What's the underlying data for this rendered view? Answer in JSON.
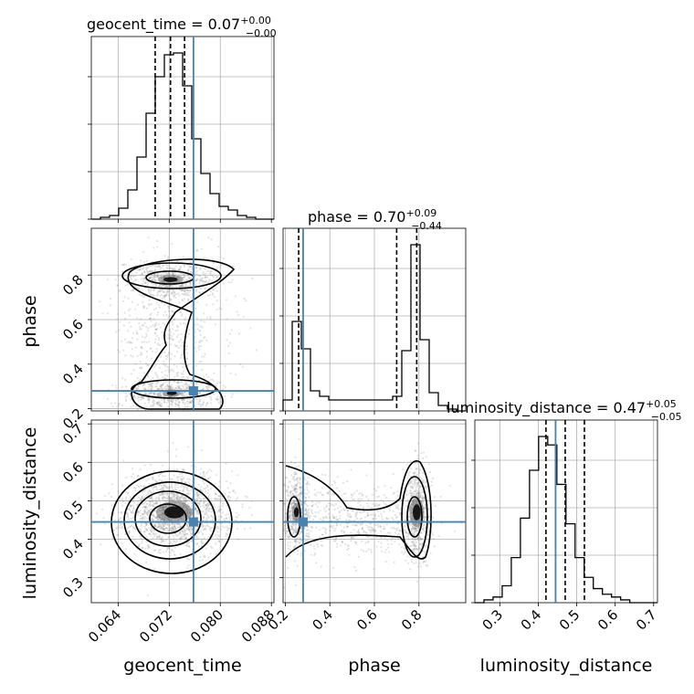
{
  "colors": {
    "truth": "#4682b4",
    "line": "#000000",
    "grid": "#b0b0b0",
    "scatter": "#808080"
  },
  "chart_data": {
    "type": "corner",
    "parameters": [
      "geocent_time",
      "phase",
      "luminosity_distance"
    ],
    "truth": {
      "geocent_time": 0.0758,
      "phase": 0.28,
      "luminosity_distance": 0.445
    },
    "ranges": {
      "geocent_time": [
        0.0598,
        0.0884
      ],
      "phase": [
        0.19,
        1.01
      ],
      "luminosity_distance": [
        0.235,
        0.71
      ]
    },
    "ticks": {
      "geocent_time": [
        "0.064",
        "0.072",
        "0.080",
        "0.088"
      ],
      "phase_x": [
        "0.2",
        "0.4",
        "0.6",
        "0.8"
      ],
      "phase_y": [
        "0.2",
        "0.4",
        "0.6",
        "0.8"
      ],
      "luminosity_distance_x": [
        "0.3",
        "0.4",
        "0.5",
        "0.6",
        "0.7"
      ],
      "luminosity_distance_y": [
        "0.3",
        "0.4",
        "0.5",
        "0.6",
        "0.7"
      ]
    },
    "titles": {
      "geocent_time": {
        "main": "geocent_time = 0.07",
        "sup": "+0.00",
        "sub": "−0.00"
      },
      "phase": {
        "main": "phase = 0.70",
        "sup": "+0.09",
        "sub": "−0.44"
      },
      "luminosity_distance": {
        "main": "luminosity_distance = 0.47",
        "sup": "+0.05",
        "sub": "−0.05"
      }
    },
    "quantiles": {
      "geocent_time": [
        0.0698,
        0.0722,
        0.0744
      ],
      "phase": [
        0.26,
        0.7,
        0.79
      ],
      "luminosity_distance": [
        0.42,
        0.47,
        0.52
      ]
    },
    "hist_geocent_time": {
      "edges_start": 0.0598,
      "bin_width": 0.00143,
      "counts": [
        0,
        1,
        2,
        6,
        16,
        34,
        58,
        78,
        90,
        91,
        73,
        44,
        25,
        14,
        7,
        5,
        2,
        1,
        0,
        0
      ]
    },
    "hist_phase": {
      "edges_start": 0.19,
      "bin_width": 0.041,
      "counts": [
        6,
        49,
        34,
        11,
        8,
        6,
        6,
        6,
        6,
        6,
        6,
        6,
        8,
        33,
        91,
        39,
        10,
        3,
        1,
        0
      ]
    },
    "hist_luminosity_distance": {
      "edges_start": 0.235,
      "bin_width": 0.0237,
      "counts": [
        0,
        1,
        2,
        6,
        16,
        30,
        47,
        59,
        56,
        42,
        28,
        16,
        9,
        5,
        3,
        2,
        1,
        0,
        0,
        0
      ]
    }
  }
}
